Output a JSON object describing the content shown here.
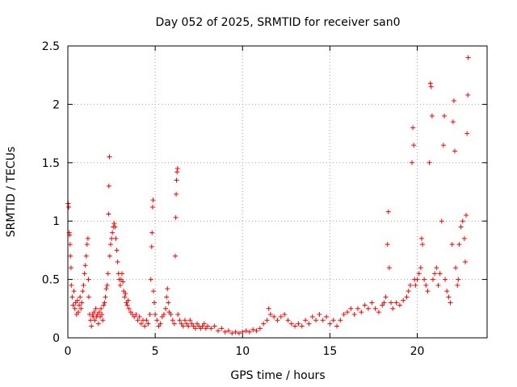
{
  "chart_data": {
    "type": "scatter",
    "title": "Day 052 of 2025, SRMTID for receiver san0",
    "xlabel": "GPS time / hours",
    "ylabel": "SRMTID / TECUs",
    "xlim": [
      0,
      24
    ],
    "ylim": [
      0,
      2.5
    ],
    "xticks": [
      0,
      5,
      10,
      15,
      20
    ],
    "yticks": [
      0,
      0.5,
      1,
      1.5,
      2,
      2.5
    ],
    "xtick_labels": [
      "0",
      "5",
      "10",
      "15",
      "20"
    ],
    "ytick_labels": [
      "0",
      "0.5",
      "1",
      "1.5",
      "2",
      "2.5"
    ],
    "grid": true,
    "marker": "+",
    "series": [
      {
        "name": "SRMTID",
        "color": "#ff0000",
        "points": [
          [
            0.02,
            1.15
          ],
          [
            0.05,
            1.12
          ],
          [
            0.08,
            0.9
          ],
          [
            0.1,
            0.88
          ],
          [
            0.13,
            0.8
          ],
          [
            0.15,
            0.7
          ],
          [
            0.18,
            0.6
          ],
          [
            0.2,
            0.45
          ],
          [
            0.25,
            0.35
          ],
          [
            0.3,
            0.28
          ],
          [
            0.35,
            0.4
          ],
          [
            0.4,
            0.25
          ],
          [
            0.45,
            0.3
          ],
          [
            0.5,
            0.2
          ],
          [
            0.55,
            0.32
          ],
          [
            0.6,
            0.22
          ],
          [
            0.65,
            0.28
          ],
          [
            0.7,
            0.35
          ],
          [
            0.75,
            0.25
          ],
          [
            0.8,
            0.3
          ],
          [
            0.85,
            0.4
          ],
          [
            0.9,
            0.45
          ],
          [
            0.95,
            0.55
          ],
          [
            1.0,
            0.62
          ],
          [
            1.05,
            0.7
          ],
          [
            1.1,
            0.8
          ],
          [
            1.15,
            0.85
          ],
          [
            1.18,
            0.5
          ],
          [
            1.2,
            0.35
          ],
          [
            1.25,
            0.2
          ],
          [
            1.3,
            0.15
          ],
          [
            1.35,
            0.1
          ],
          [
            1.4,
            0.2
          ],
          [
            1.45,
            0.18
          ],
          [
            1.5,
            0.22
          ],
          [
            1.55,
            0.15
          ],
          [
            1.6,
            0.25
          ],
          [
            1.65,
            0.18
          ],
          [
            1.7,
            0.2
          ],
          [
            1.75,
            0.12
          ],
          [
            1.8,
            0.22
          ],
          [
            1.85,
            0.18
          ],
          [
            1.9,
            0.25
          ],
          [
            1.95,
            0.2
          ],
          [
            2.0,
            0.15
          ],
          [
            2.05,
            0.28
          ],
          [
            2.1,
            0.3
          ],
          [
            2.15,
            0.35
          ],
          [
            2.2,
            0.42
          ],
          [
            2.25,
            0.45
          ],
          [
            2.3,
            0.55
          ],
          [
            2.33,
            1.06
          ],
          [
            2.35,
            1.3
          ],
          [
            2.38,
            1.55
          ],
          [
            2.4,
            0.7
          ],
          [
            2.45,
            0.8
          ],
          [
            2.5,
            0.85
          ],
          [
            2.55,
            0.9
          ],
          [
            2.6,
            0.95
          ],
          [
            2.65,
            0.98
          ],
          [
            2.7,
            0.95
          ],
          [
            2.75,
            0.85
          ],
          [
            2.8,
            0.75
          ],
          [
            2.85,
            0.65
          ],
          [
            2.9,
            0.55
          ],
          [
            2.95,
            0.5
          ],
          [
            3.0,
            0.45
          ],
          [
            3.05,
            0.5
          ],
          [
            3.1,
            0.55
          ],
          [
            3.15,
            0.48
          ],
          [
            3.2,
            0.4
          ],
          [
            3.25,
            0.35
          ],
          [
            3.3,
            0.38
          ],
          [
            3.35,
            0.3
          ],
          [
            3.4,
            0.28
          ],
          [
            3.45,
            0.32
          ],
          [
            3.5,
            0.25
          ],
          [
            3.6,
            0.22
          ],
          [
            3.7,
            0.2
          ],
          [
            3.8,
            0.18
          ],
          [
            3.9,
            0.2
          ],
          [
            4.0,
            0.15
          ],
          [
            4.1,
            0.18
          ],
          [
            4.2,
            0.12
          ],
          [
            4.3,
            0.15
          ],
          [
            4.4,
            0.1
          ],
          [
            4.5,
            0.15
          ],
          [
            4.6,
            0.12
          ],
          [
            4.7,
            0.2
          ],
          [
            4.75,
            0.5
          ],
          [
            4.8,
            0.78
          ],
          [
            4.82,
            0.9
          ],
          [
            4.85,
            1.12
          ],
          [
            4.88,
            1.18
          ],
          [
            4.9,
            0.4
          ],
          [
            4.95,
            0.3
          ],
          [
            5.0,
            0.2
          ],
          [
            5.1,
            0.15
          ],
          [
            5.2,
            0.1
          ],
          [
            5.3,
            0.12
          ],
          [
            5.4,
            0.18
          ],
          [
            5.5,
            0.2
          ],
          [
            5.6,
            0.25
          ],
          [
            5.65,
            0.35
          ],
          [
            5.7,
            0.42
          ],
          [
            5.75,
            0.3
          ],
          [
            5.8,
            0.22
          ],
          [
            5.9,
            0.2
          ],
          [
            6.0,
            0.15
          ],
          [
            6.1,
            0.12
          ],
          [
            6.15,
            0.7
          ],
          [
            6.18,
            1.03
          ],
          [
            6.2,
            1.23
          ],
          [
            6.22,
            1.35
          ],
          [
            6.25,
            1.42
          ],
          [
            6.28,
            1.45
          ],
          [
            6.3,
            0.2
          ],
          [
            6.4,
            0.15
          ],
          [
            6.5,
            0.12
          ],
          [
            6.6,
            0.1
          ],
          [
            6.7,
            0.15
          ],
          [
            6.8,
            0.12
          ],
          [
            6.9,
            0.1
          ],
          [
            7.0,
            0.15
          ],
          [
            7.1,
            0.12
          ],
          [
            7.2,
            0.1
          ],
          [
            7.3,
            0.08
          ],
          [
            7.4,
            0.12
          ],
          [
            7.5,
            0.1
          ],
          [
            7.6,
            0.08
          ],
          [
            7.7,
            0.1
          ],
          [
            7.8,
            0.12
          ],
          [
            7.9,
            0.08
          ],
          [
            8.0,
            0.1
          ],
          [
            8.2,
            0.08
          ],
          [
            8.4,
            0.1
          ],
          [
            8.6,
            0.06
          ],
          [
            8.8,
            0.08
          ],
          [
            9.0,
            0.05
          ],
          [
            9.2,
            0.06
          ],
          [
            9.4,
            0.04
          ],
          [
            9.6,
            0.05
          ],
          [
            9.8,
            0.04
          ],
          [
            10.0,
            0.05
          ],
          [
            10.2,
            0.06
          ],
          [
            10.4,
            0.05
          ],
          [
            10.6,
            0.07
          ],
          [
            10.8,
            0.06
          ],
          [
            11.0,
            0.08
          ],
          [
            11.2,
            0.12
          ],
          [
            11.4,
            0.15
          ],
          [
            11.5,
            0.25
          ],
          [
            11.6,
            0.2
          ],
          [
            11.8,
            0.18
          ],
          [
            12.0,
            0.15
          ],
          [
            12.2,
            0.18
          ],
          [
            12.4,
            0.2
          ],
          [
            12.6,
            0.15
          ],
          [
            12.8,
            0.12
          ],
          [
            13.0,
            0.1
          ],
          [
            13.2,
            0.12
          ],
          [
            13.4,
            0.1
          ],
          [
            13.6,
            0.15
          ],
          [
            13.8,
            0.12
          ],
          [
            14.0,
            0.18
          ],
          [
            14.2,
            0.15
          ],
          [
            14.4,
            0.2
          ],
          [
            14.6,
            0.15
          ],
          [
            14.8,
            0.18
          ],
          [
            15.0,
            0.12
          ],
          [
            15.2,
            0.15
          ],
          [
            15.4,
            0.1
          ],
          [
            15.6,
            0.15
          ],
          [
            15.8,
            0.2
          ],
          [
            16.0,
            0.22
          ],
          [
            16.2,
            0.25
          ],
          [
            16.4,
            0.2
          ],
          [
            16.6,
            0.25
          ],
          [
            16.8,
            0.22
          ],
          [
            17.0,
            0.28
          ],
          [
            17.2,
            0.25
          ],
          [
            17.4,
            0.3
          ],
          [
            17.6,
            0.25
          ],
          [
            17.8,
            0.22
          ],
          [
            18.0,
            0.28
          ],
          [
            18.1,
            0.3
          ],
          [
            18.2,
            0.35
          ],
          [
            18.3,
            0.8
          ],
          [
            18.35,
            1.08
          ],
          [
            18.4,
            0.6
          ],
          [
            18.5,
            0.3
          ],
          [
            18.6,
            0.25
          ],
          [
            18.8,
            0.3
          ],
          [
            19.0,
            0.28
          ],
          [
            19.2,
            0.32
          ],
          [
            19.4,
            0.35
          ],
          [
            19.5,
            0.4
          ],
          [
            19.6,
            0.45
          ],
          [
            19.7,
            1.5
          ],
          [
            19.75,
            1.8
          ],
          [
            19.8,
            1.65
          ],
          [
            19.85,
            0.5
          ],
          [
            19.9,
            0.45
          ],
          [
            20.0,
            0.5
          ],
          [
            20.1,
            0.55
          ],
          [
            20.2,
            0.6
          ],
          [
            20.25,
            0.85
          ],
          [
            20.3,
            0.8
          ],
          [
            20.4,
            0.5
          ],
          [
            20.5,
            0.45
          ],
          [
            20.6,
            0.4
          ],
          [
            20.7,
            1.5
          ],
          [
            20.75,
            2.18
          ],
          [
            20.8,
            2.15
          ],
          [
            20.85,
            1.9
          ],
          [
            20.9,
            0.5
          ],
          [
            21.0,
            0.55
          ],
          [
            21.1,
            0.6
          ],
          [
            21.2,
            0.45
          ],
          [
            21.3,
            0.55
          ],
          [
            21.4,
            1.0
          ],
          [
            21.5,
            1.65
          ],
          [
            21.55,
            1.9
          ],
          [
            21.6,
            0.5
          ],
          [
            21.7,
            0.4
          ],
          [
            21.8,
            0.35
          ],
          [
            21.9,
            0.3
          ],
          [
            22.0,
            0.8
          ],
          [
            22.05,
            1.85
          ],
          [
            22.1,
            2.03
          ],
          [
            22.15,
            1.6
          ],
          [
            22.2,
            0.6
          ],
          [
            22.3,
            0.45
          ],
          [
            22.35,
            0.5
          ],
          [
            22.4,
            0.8
          ],
          [
            22.5,
            0.95
          ],
          [
            22.6,
            1.0
          ],
          [
            22.7,
            0.85
          ],
          [
            22.75,
            0.65
          ],
          [
            22.8,
            1.05
          ],
          [
            22.85,
            1.75
          ],
          [
            22.9,
            2.08
          ],
          [
            22.92,
            2.4
          ]
        ]
      }
    ]
  }
}
